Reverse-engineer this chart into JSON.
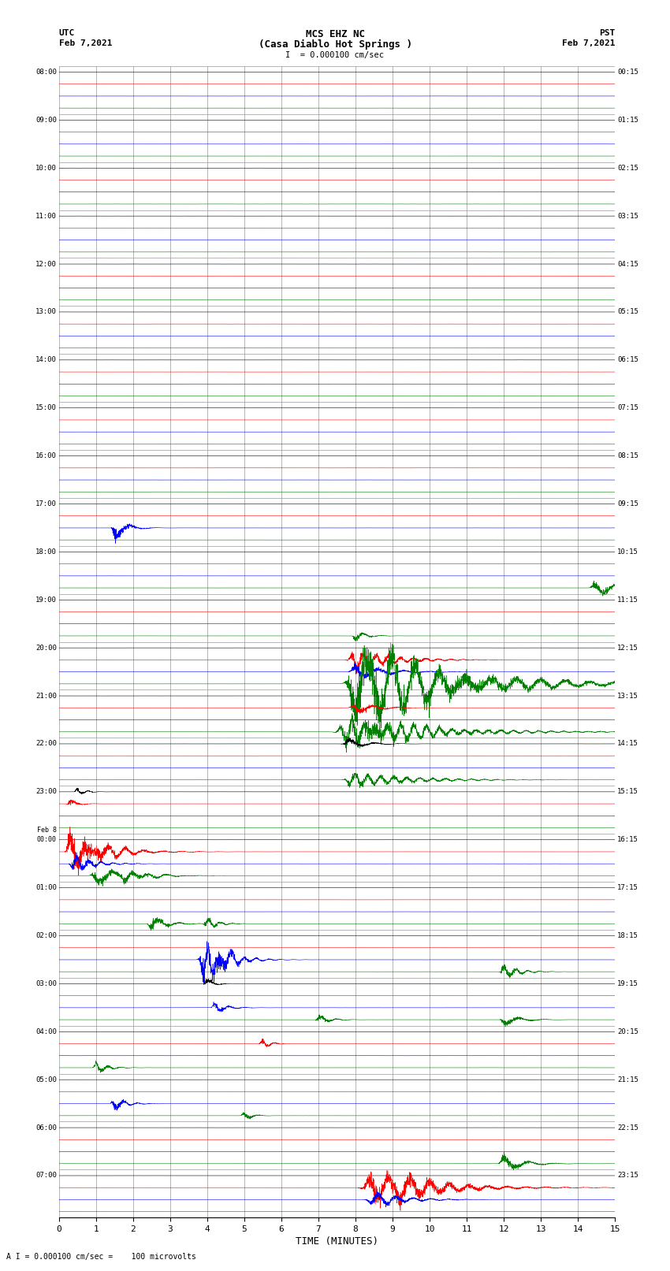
{
  "title_line1": "MCS EHZ NC",
  "title_line2": "(Casa Diablo Hot Springs )",
  "scale_label": "I  = 0.000100 cm/sec",
  "bottom_label": "A I = 0.000100 cm/sec =    100 microvolts",
  "utc_label": "UTC",
  "utc_date": "Feb 7,2021",
  "pst_label": "PST",
  "pst_date": "Feb 7,2021",
  "xlabel": "TIME (MINUTES)",
  "left_times": [
    "08:00",
    "09:00",
    "10:00",
    "11:00",
    "12:00",
    "13:00",
    "14:00",
    "15:00",
    "16:00",
    "17:00",
    "18:00",
    "19:00",
    "20:00",
    "21:00",
    "22:00",
    "23:00",
    "00:00",
    "01:00",
    "02:00",
    "03:00",
    "04:00",
    "05:00",
    "06:00",
    "07:00"
  ],
  "right_times": [
    "00:15",
    "01:15",
    "02:15",
    "03:15",
    "04:15",
    "05:15",
    "06:15",
    "07:15",
    "08:15",
    "09:15",
    "10:15",
    "11:15",
    "12:15",
    "13:15",
    "14:15",
    "15:15",
    "16:15",
    "17:15",
    "18:15",
    "19:15",
    "20:15",
    "21:15",
    "22:15",
    "23:15"
  ],
  "n_rows": 24,
  "n_traces_per_row": 4,
  "colors": [
    "black",
    "red",
    "blue",
    "green"
  ],
  "bg_color": "white",
  "grid_color": "#999999",
  "xmin": 0,
  "xmax": 15,
  "xticks": [
    0,
    1,
    2,
    3,
    4,
    5,
    6,
    7,
    8,
    9,
    10,
    11,
    12,
    13,
    14,
    15
  ],
  "noise_amp": 0.06,
  "trace_scale": 0.32
}
